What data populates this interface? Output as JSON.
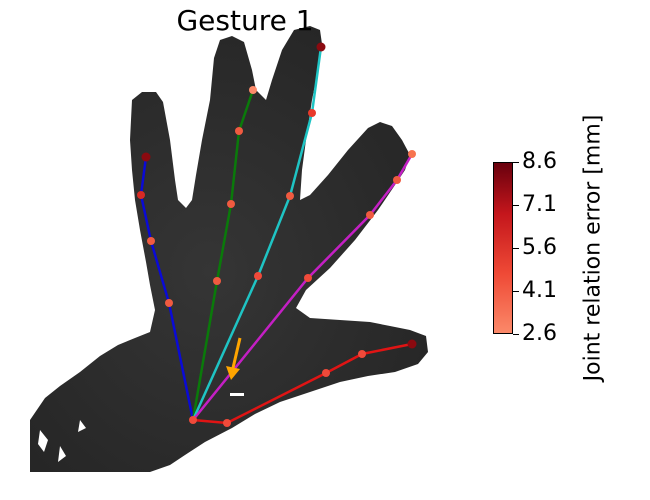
{
  "title": "Gesture 1",
  "colorbar": {
    "label": "Joint relation error [mm]",
    "ticks": [
      "8.6",
      "7.1",
      "5.6",
      "4.1",
      "2.6"
    ],
    "min": 2.6,
    "max": 8.6,
    "gradient": [
      "#fb8a6a",
      "#e8392a",
      "#b31218",
      "#67000d"
    ]
  },
  "colors": {
    "thumb_chain": "#e01414",
    "index_chain": "#0a0ad6",
    "middle_chain": "#0a7a0a",
    "ring_chain": "#1fc4c4",
    "pinky_chain": "#c41fc4",
    "direction_arrow": "#ffa500",
    "depth_hand": "#2c2c2c"
  }
}
